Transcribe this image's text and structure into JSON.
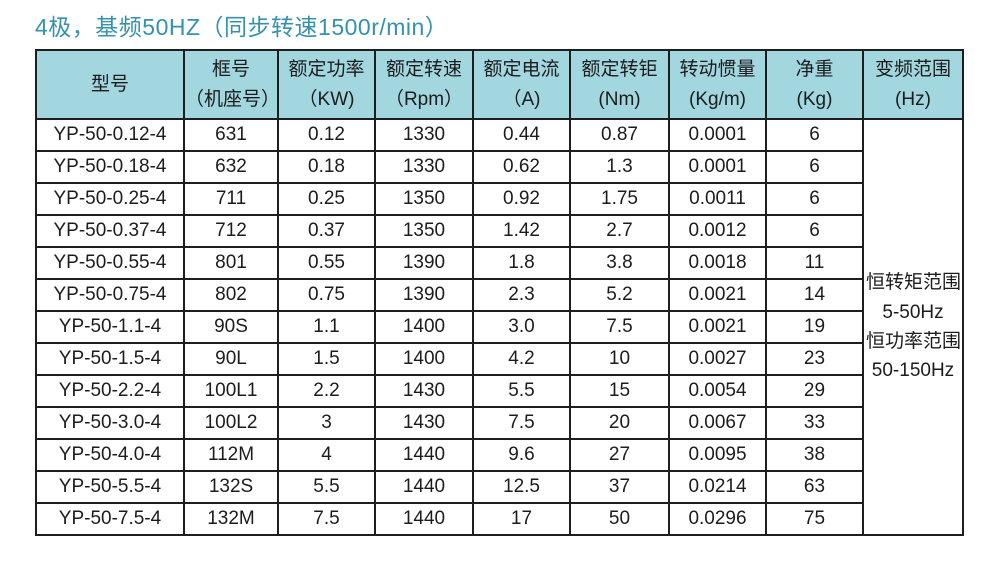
{
  "title": "4极，基频50HZ（同步转速1500r/min）",
  "colors": {
    "title_accent": "#3492ac",
    "header_bg": "#a2d7e0",
    "border": "#1e1e1e",
    "text": "#1c1c1c"
  },
  "table": {
    "headers": [
      {
        "line1": "型号",
        "line2": ""
      },
      {
        "line1": "框号",
        "line2": "（机座号）"
      },
      {
        "line1": "额定功率",
        "line2": "（KW)"
      },
      {
        "line1": "额定转速",
        "line2": "（Rpm）"
      },
      {
        "line1": "额定电流",
        "line2": "（A)"
      },
      {
        "line1": "额定转钜",
        "line2": "(Nm)"
      },
      {
        "line1": "转动惯量",
        "line2": "(Kg/m)"
      },
      {
        "line1": "净重",
        "line2": "(Kg)"
      },
      {
        "line1": "变频范围",
        "line2": "(Hz)"
      }
    ],
    "rows": [
      [
        "YP-50-0.12-4",
        "631",
        "0.12",
        "1330",
        "0.44",
        "0.87",
        "0.0001",
        "6"
      ],
      [
        "YP-50-0.18-4",
        "632",
        "0.18",
        "1330",
        "0.62",
        "1.3",
        "0.0001",
        "6"
      ],
      [
        "YP-50-0.25-4",
        "711",
        "0.25",
        "1350",
        "0.92",
        "1.75",
        "0.0011",
        "6"
      ],
      [
        "YP-50-0.37-4",
        "712",
        "0.37",
        "1350",
        "1.42",
        "2.7",
        "0.0012",
        "6"
      ],
      [
        "YP-50-0.55-4",
        "801",
        "0.55",
        "1390",
        "1.8",
        "3.8",
        "0.0018",
        "11"
      ],
      [
        "YP-50-0.75-4",
        "802",
        "0.75",
        "1390",
        "2.3",
        "5.2",
        "0.0021",
        "14"
      ],
      [
        "YP-50-1.1-4",
        "90S",
        "1.1",
        "1400",
        "3.0",
        "7.5",
        "0.0021",
        "19"
      ],
      [
        "YP-50-1.5-4",
        "90L",
        "1.5",
        "1400",
        "4.2",
        "10",
        "0.0027",
        "23"
      ],
      [
        "YP-50-2.2-4",
        "100L1",
        "2.2",
        "1430",
        "5.5",
        "15",
        "0.0054",
        "29"
      ],
      [
        "YP-50-3.0-4",
        "100L2",
        "3",
        "1430",
        "7.5",
        "20",
        "0.0067",
        "33"
      ],
      [
        "YP-50-4.0-4",
        "112M",
        "4",
        "1440",
        "9.6",
        "27",
        "0.0095",
        "38"
      ],
      [
        "YP-50-5.5-4",
        "132S",
        "5.5",
        "1440",
        "12.5",
        "37",
        "0.0214",
        "63"
      ],
      [
        "YP-50-7.5-4",
        "132M",
        "7.5",
        "1440",
        "17",
        "50",
        "0.0296",
        "75"
      ]
    ],
    "freq_range_lines": [
      "恒转矩范围",
      "5-50Hz",
      "恒功率范围",
      "50-150Hz"
    ]
  }
}
